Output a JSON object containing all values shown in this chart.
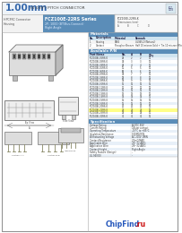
{
  "title_large": "1.00mm",
  "title_small": "(0.039\") PITCH CONNECTOR",
  "series_label": "FCZ100E-22RS Series",
  "series_sub": "2P, 1000 (BT/Bus-Connect)",
  "series_sub2": "Right Angle",
  "product_type_line1": "HPCFRC Connector",
  "product_type_line2": "Housing",
  "white": "#ffffff",
  "off_white": "#f7f7f7",
  "light_gray": "#e8e8e8",
  "mid_gray": "#cccccc",
  "dark_gray": "#888888",
  "dark": "#333333",
  "blue_header": "#5b8db8",
  "blue_light": "#d0e4f0",
  "blue_row": "#e8f0f8",
  "yellow_hl": "#ffff88",
  "chipfind_blue": "#2255bb",
  "chipfind_red": "#cc1111",
  "border_color": "#999999",
  "avail_cols": [
    "Part Name",
    "No.",
    "A",
    "B",
    "Q'ty"
  ],
  "avail_rows": [
    [
      "FCZ100E-02RS-K",
      "02",
      "2",
      "2",
      "10"
    ],
    [
      "FCZ100E-03RS-K",
      "03",
      "3",
      "3",
      "10"
    ],
    [
      "FCZ100E-04RS-K",
      "04",
      "4",
      "4",
      "10"
    ],
    [
      "FCZ100E-05RS-K",
      "05",
      "5",
      "5",
      "10"
    ],
    [
      "FCZ100E-06RS-K",
      "06",
      "6",
      "6",
      "10"
    ],
    [
      "FCZ100E-07RS-K",
      "07",
      "7",
      "7",
      "10"
    ],
    [
      "FCZ100E-08RS-K",
      "08",
      "8",
      "8",
      "10"
    ],
    [
      "FCZ100E-09RS-K",
      "09",
      "9",
      "9",
      "10"
    ],
    [
      "FCZ100E-10RS-K",
      "10",
      "10",
      "10",
      "10"
    ],
    [
      "FCZ100E-11RS-K",
      "11",
      "11",
      "11",
      "10"
    ],
    [
      "FCZ100E-12RS-K",
      "12",
      "12",
      "12",
      "10"
    ],
    [
      "FCZ100E-13RS-K",
      "13",
      "13",
      "13",
      "10"
    ],
    [
      "FCZ100E-14RS-K",
      "14",
      "14",
      "14",
      "10"
    ],
    [
      "FCZ100E-15RS-K",
      "15",
      "15",
      "15",
      "10"
    ],
    [
      "FCZ100E-16RS-K",
      "16",
      "16",
      "16",
      "10"
    ],
    [
      "FCZ100E-20RS-K",
      "20",
      "20",
      "20",
      "10"
    ],
    [
      "FCZ100E-22RS-K",
      "22",
      "22",
      "22",
      "10"
    ],
    [
      "FCZ100E-25RS-K",
      "25",
      "25",
      "25",
      "10"
    ],
    [
      "FCZ100E-30RS-K",
      "30",
      "30",
      "30",
      "10"
    ]
  ],
  "highlight_row": "FCZ100E-22RS-K",
  "mat_cols": [
    "No.",
    "Description",
    "Material",
    "Remark"
  ],
  "mat_rows": [
    [
      "1",
      "Housing",
      "PA66",
      "UL94V-0 (Natural)"
    ],
    [
      "2",
      "Contact",
      "Phosphor Bronze",
      "Half 10 micron Gold + Tin 10 micron (Min)"
    ]
  ],
  "spec_rows": [
    [
      "Voltage Rating",
      "AC/DC 50V"
    ],
    [
      "Current Rating",
      "1A per contact"
    ],
    [
      "Operating Temperature",
      "-25°C to +85°C"
    ],
    [
      "Insulation Resistance",
      "100MΩ MIN"
    ],
    [
      "Withstanding Voltage",
      "AC 200V 1MIN"
    ],
    [
      "Contact Resistance",
      "20mΩ MAX"
    ],
    [
      "Applicable Wire",
      "28~32 AWG"
    ],
    [
      "Application Wire",
      "28~32 AWG"
    ],
    [
      "Contact Height",
      "Right Angle"
    ],
    [
      "Safety Feature (Design)",
      "-"
    ],
    [
      "UL 94(VO)",
      "-"
    ]
  ],
  "dim_label": "FCZ100E-22RS-K",
  "dim_note": "Dimensions (mm)"
}
